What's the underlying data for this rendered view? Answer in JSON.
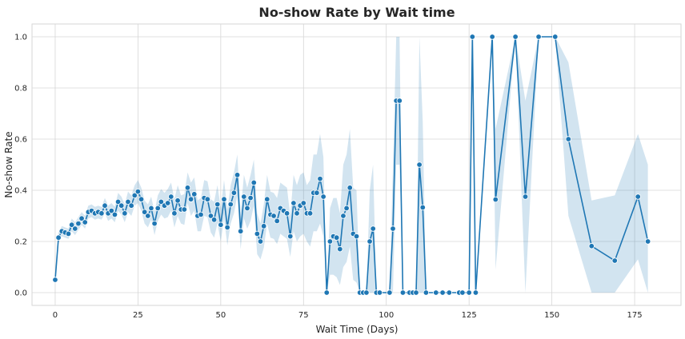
{
  "chart_data": {
    "type": "line",
    "title": "No-show Rate by Wait time",
    "xlabel": "Wait Time (Days)",
    "ylabel": "No-show Rate",
    "xlim": [
      -7,
      189
    ],
    "ylim": [
      -0.05,
      1.05
    ],
    "xticks": [
      0,
      25,
      50,
      75,
      100,
      125,
      150,
      175
    ],
    "yticks": [
      0.0,
      0.2,
      0.4,
      0.6,
      0.8,
      1.0
    ],
    "grid": true,
    "colors": {
      "line": "#1f77b4",
      "band": "#1f77b4",
      "marker_edge": "#ffffff"
    },
    "series": [
      {
        "x": [
          0,
          1,
          2,
          3,
          4,
          5,
          6,
          7,
          8,
          9,
          10,
          11,
          12,
          13,
          14,
          15,
          16,
          17,
          18,
          19,
          20,
          21,
          22,
          23,
          24,
          25,
          26,
          27,
          28,
          29,
          30,
          31,
          32,
          33,
          34,
          35,
          36,
          37,
          38,
          39,
          40,
          41,
          42,
          43,
          44,
          45,
          46,
          47,
          48,
          49,
          50,
          51,
          52,
          53,
          54,
          55,
          56,
          57,
          58,
          59,
          60,
          61,
          62,
          63,
          64,
          65,
          66,
          67,
          68,
          69,
          70,
          71,
          72,
          73,
          74,
          75,
          76,
          77,
          78,
          79,
          80,
          81,
          82,
          83,
          84,
          85,
          86,
          87,
          88,
          89,
          90,
          91,
          92,
          93,
          94,
          95,
          96,
          97,
          98,
          101,
          102,
          103,
          104,
          105,
          107,
          108,
          109,
          110,
          111,
          112,
          115,
          117,
          119,
          122,
          123,
          125,
          126,
          127,
          132,
          133,
          139,
          142,
          146,
          151,
          155,
          162,
          169,
          176,
          179
        ],
        "y": [
          0.05,
          0.215,
          0.24,
          0.235,
          0.23,
          0.265,
          0.25,
          0.27,
          0.29,
          0.275,
          0.315,
          0.32,
          0.31,
          0.315,
          0.31,
          0.34,
          0.31,
          0.32,
          0.305,
          0.355,
          0.34,
          0.31,
          0.355,
          0.34,
          0.38,
          0.395,
          0.365,
          0.315,
          0.3,
          0.33,
          0.27,
          0.33,
          0.355,
          0.34,
          0.35,
          0.375,
          0.31,
          0.36,
          0.325,
          0.325,
          0.41,
          0.365,
          0.385,
          0.3,
          0.305,
          0.37,
          0.365,
          0.3,
          0.285,
          0.345,
          0.265,
          0.365,
          0.255,
          0.345,
          0.39,
          0.46,
          0.24,
          0.375,
          0.33,
          0.37,
          0.43,
          0.23,
          0.2,
          0.26,
          0.365,
          0.305,
          0.3,
          0.28,
          0.33,
          0.32,
          0.31,
          0.22,
          0.35,
          0.31,
          0.34,
          0.35,
          0.31,
          0.31,
          0.39,
          0.39,
          0.445,
          0.375,
          0.0,
          0.2,
          0.22,
          0.215,
          0.17,
          0.3,
          0.33,
          0.41,
          0.23,
          0.22,
          0.0,
          0.0,
          0.0,
          0.2,
          0.25,
          0.0,
          0.0,
          0.0,
          0.25,
          0.75,
          0.75,
          0.0,
          0.0,
          0.0,
          0.0,
          0.5,
          0.333,
          0.0,
          0.0,
          0.0,
          0.0,
          0.0,
          0.0,
          0.0,
          1.0,
          0.0,
          1.0,
          0.364,
          1.0,
          0.375,
          1.0,
          1.0,
          0.6,
          0.182,
          0.125,
          0.375,
          0.2
        ],
        "ci_low": [
          0.04,
          0.195,
          0.22,
          0.215,
          0.21,
          0.24,
          0.225,
          0.245,
          0.265,
          0.25,
          0.29,
          0.295,
          0.285,
          0.29,
          0.285,
          0.31,
          0.28,
          0.29,
          0.275,
          0.32,
          0.305,
          0.275,
          0.315,
          0.3,
          0.34,
          0.35,
          0.32,
          0.27,
          0.255,
          0.285,
          0.225,
          0.28,
          0.305,
          0.29,
          0.295,
          0.32,
          0.255,
          0.3,
          0.27,
          0.265,
          0.35,
          0.3,
          0.32,
          0.24,
          0.24,
          0.3,
          0.295,
          0.235,
          0.215,
          0.27,
          0.2,
          0.29,
          0.185,
          0.27,
          0.31,
          0.38,
          0.17,
          0.29,
          0.25,
          0.28,
          0.34,
          0.15,
          0.13,
          0.175,
          0.27,
          0.215,
          0.21,
          0.19,
          0.23,
          0.22,
          0.21,
          0.14,
          0.24,
          0.2,
          0.22,
          0.23,
          0.2,
          0.18,
          0.24,
          0.24,
          0.27,
          0.22,
          0.0,
          0.07,
          0.07,
          0.06,
          0.03,
          0.1,
          0.12,
          0.18,
          0.05,
          0.04,
          0.0,
          0.0,
          0.0,
          0.0,
          0.0,
          0.0,
          0.0,
          0.0,
          0.0,
          0.5,
          0.5,
          0.0,
          0.0,
          0.0,
          0.0,
          0.0,
          0.0,
          0.0,
          0.0,
          0.0,
          0.0,
          0.0,
          0.0,
          0.0,
          1.0,
          0.0,
          1.0,
          0.09,
          1.0,
          0.0,
          1.0,
          1.0,
          0.3,
          0.0,
          0.0,
          0.13,
          0.0
        ],
        "ci_high": [
          0.06,
          0.235,
          0.26,
          0.255,
          0.25,
          0.29,
          0.275,
          0.295,
          0.315,
          0.3,
          0.34,
          0.345,
          0.335,
          0.34,
          0.335,
          0.37,
          0.34,
          0.35,
          0.335,
          0.39,
          0.375,
          0.345,
          0.395,
          0.38,
          0.42,
          0.44,
          0.41,
          0.36,
          0.345,
          0.375,
          0.315,
          0.38,
          0.405,
          0.39,
          0.405,
          0.43,
          0.365,
          0.42,
          0.38,
          0.385,
          0.47,
          0.43,
          0.45,
          0.36,
          0.37,
          0.44,
          0.435,
          0.365,
          0.355,
          0.42,
          0.33,
          0.44,
          0.325,
          0.42,
          0.47,
          0.54,
          0.31,
          0.46,
          0.41,
          0.46,
          0.52,
          0.31,
          0.27,
          0.345,
          0.46,
          0.395,
          0.39,
          0.37,
          0.43,
          0.42,
          0.41,
          0.3,
          0.46,
          0.42,
          0.46,
          0.47,
          0.42,
          0.44,
          0.54,
          0.54,
          0.62,
          0.53,
          0.0,
          0.33,
          0.37,
          0.37,
          0.31,
          0.5,
          0.54,
          0.64,
          0.41,
          0.4,
          0.0,
          0.0,
          0.0,
          0.4,
          0.5,
          0.0,
          0.0,
          0.0,
          0.5,
          1.0,
          1.0,
          0.0,
          0.0,
          0.0,
          0.0,
          1.0,
          0.67,
          0.0,
          0.0,
          0.0,
          0.0,
          0.0,
          0.0,
          0.0,
          1.0,
          0.0,
          1.0,
          0.64,
          1.0,
          0.75,
          1.0,
          1.0,
          0.9,
          0.36,
          0.38,
          0.62,
          0.5
        ]
      }
    ]
  }
}
